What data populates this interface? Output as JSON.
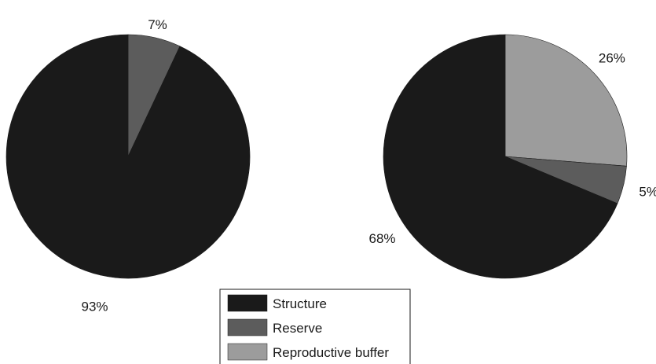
{
  "chart_data": [
    {
      "type": "pie",
      "title": "",
      "start_angle": "top",
      "direction": "clockwise",
      "slices": [
        {
          "name": "Reserve",
          "value": 7,
          "label": "7%",
          "color": "#5c5c5c"
        },
        {
          "name": "Structure",
          "value": 93,
          "label": "93%",
          "color": "#1a1a1a"
        }
      ]
    },
    {
      "type": "pie",
      "title": "",
      "start_angle": "top",
      "direction": "clockwise",
      "slices": [
        {
          "name": "Reproductive buffer",
          "value": 26,
          "label": "26%",
          "color": "#9c9c9c"
        },
        {
          "name": "Reserve",
          "value": 5,
          "label": "5%",
          "color": "#5c5c5c"
        },
        {
          "name": "Structure",
          "value": 68,
          "label": "68%",
          "color": "#1a1a1a"
        }
      ]
    }
  ],
  "legend": {
    "placement": "bottom-center",
    "items": [
      {
        "label": "Structure",
        "color": "#1a1a1a"
      },
      {
        "label": "Reserve",
        "color": "#5c5c5c"
      },
      {
        "label": "Reproductive buffer",
        "color": "#9c9c9c"
      }
    ]
  }
}
